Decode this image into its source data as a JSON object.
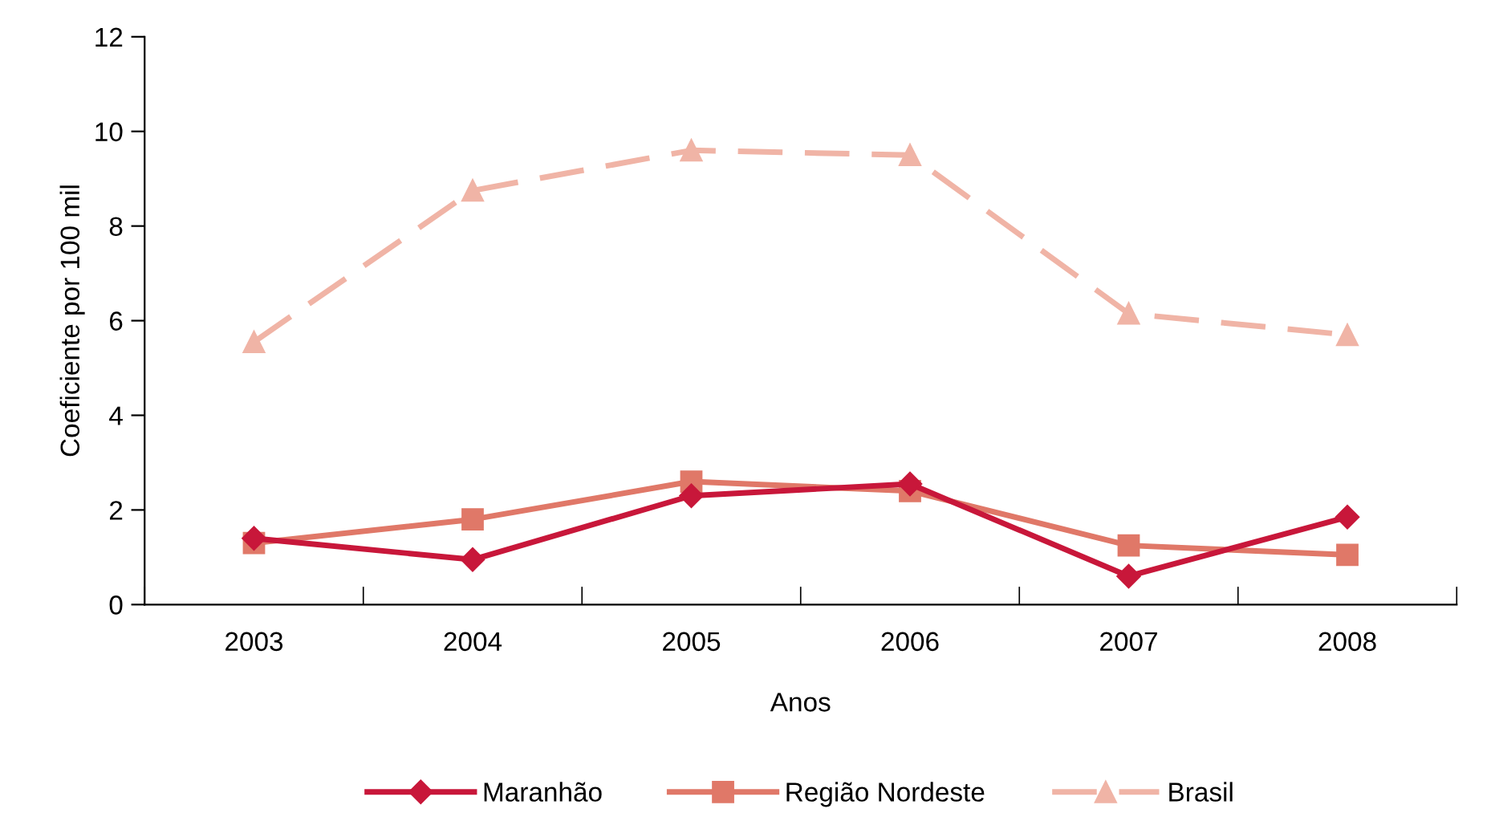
{
  "chart_data": {
    "type": "line",
    "xlabel": "Anos",
    "ylabel": "Coeficiente por 100 mil",
    "categories": [
      "2003",
      "2004",
      "2005",
      "2006",
      "2007",
      "2008"
    ],
    "series": [
      {
        "name": "Maranhão",
        "color": "#c8173a",
        "marker": "diamond",
        "line_style": "solid",
        "values": [
          1.4,
          0.95,
          2.3,
          2.55,
          0.6,
          1.85
        ]
      },
      {
        "name": "Região Nordeste",
        "color": "#e07868",
        "marker": "square",
        "line_style": "solid",
        "values": [
          1.3,
          1.8,
          2.6,
          2.4,
          1.25,
          1.05
        ]
      },
      {
        "name": "Brasil",
        "color": "#f0b4a6",
        "marker": "triangle",
        "line_style": "dashed",
        "values": [
          5.55,
          8.75,
          9.6,
          9.5,
          6.15,
          5.7
        ]
      }
    ],
    "ylim": [
      0,
      12
    ],
    "yticks": [
      0,
      2,
      4,
      6,
      8,
      10,
      12
    ],
    "grid": false,
    "legend": "bottom"
  }
}
